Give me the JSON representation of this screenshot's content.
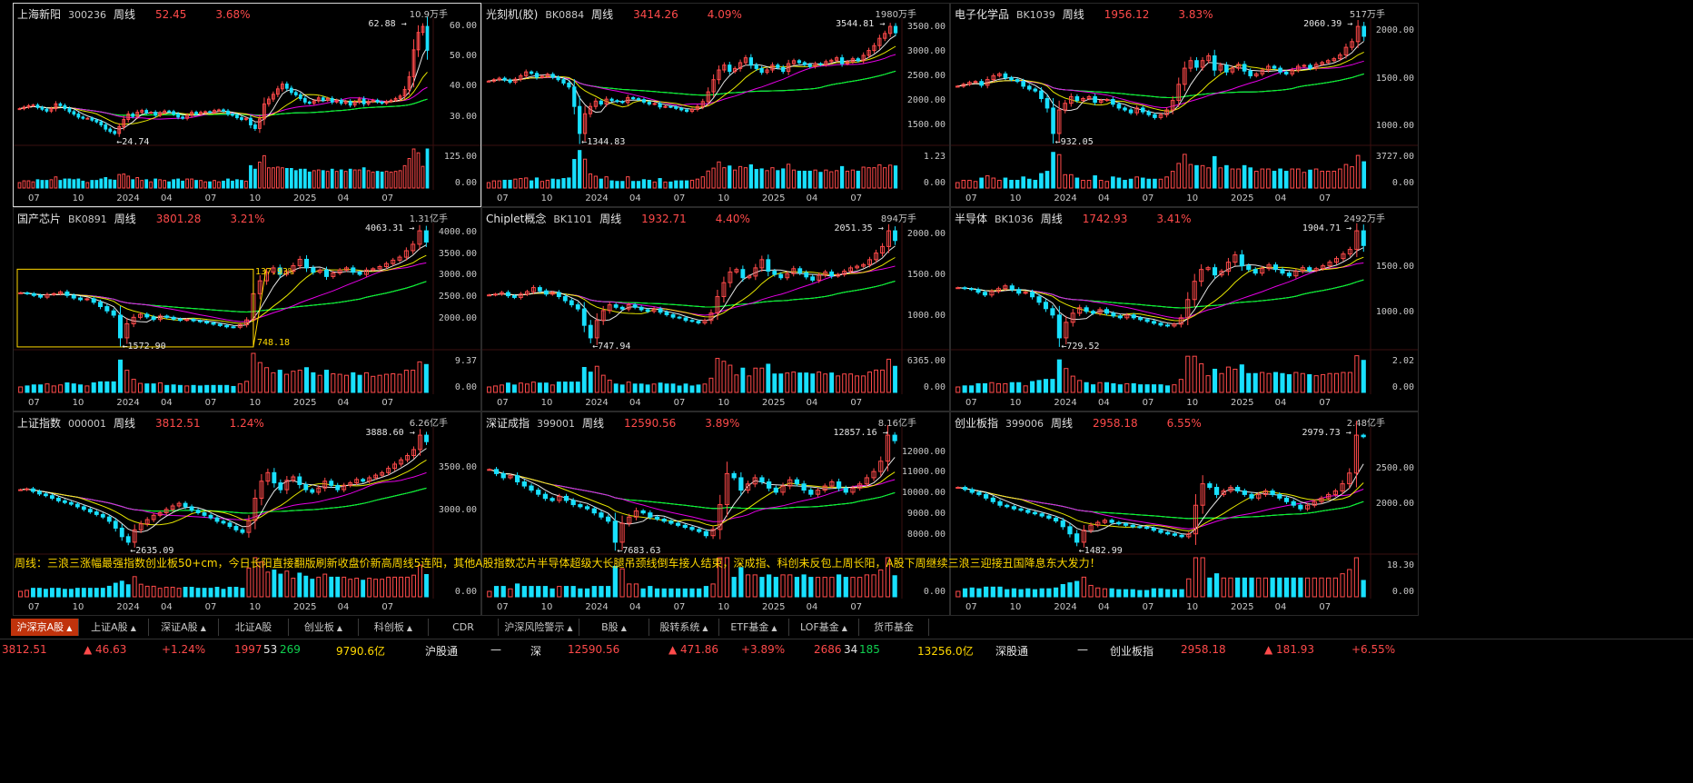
{
  "colors": {
    "up": "#ff4a4a",
    "down": "#18e0ff",
    "ma5": "#ffffff",
    "ma10": "#ffff00",
    "ma20": "#ff00ff",
    "ma60": "#00ff00",
    "ma120": "#18e0ff",
    "ma250": "#c8c8c8"
  },
  "x_ticks": [
    "07",
    "10",
    "2024",
    "04",
    "07",
    "10",
    "2025",
    "04",
    "07"
  ],
  "panels": [
    {
      "name": "上海新阳",
      "code": "300236",
      "period": "周线",
      "price": "52.45",
      "change": "3.68%",
      "vol_unit": "10.9万手",
      "y_ticks": [
        "60.00",
        "50.00",
        "40.00",
        "30.00"
      ],
      "vol_ticks": [
        "125.00",
        "0.00"
      ],
      "high": "62.88",
      "low": "24.74",
      "series": [
        33,
        33.5,
        34,
        34.2,
        33.4,
        32.8,
        32.2,
        33,
        34.6,
        34,
        33,
        32,
        31.2,
        30.2,
        29.8,
        29.8,
        29.2,
        28.6,
        27.6,
        26.2,
        25.4,
        24.74,
        27,
        29.4,
        31.2,
        30.4,
        31.8,
        32.4,
        31.6,
        31.8,
        30.8,
        31.6,
        32.2,
        32,
        31.2,
        30.2,
        29.8,
        30.8,
        31.8,
        31.2,
        31.8,
        32,
        31.8,
        32.4,
        32.6,
        32.2,
        31.2,
        30.8,
        30,
        29.4,
        29.8,
        27.6,
        26.4,
        29.6,
        34.6,
        36.2,
        37.8,
        39.6,
        41.2,
        39.8,
        38.4,
        37.6,
        36.4,
        35.2,
        34.8,
        35.6,
        36.6,
        35.8,
        36.4,
        35.2,
        35.8,
        34.8,
        35.4,
        34.2,
        35.2,
        36.2,
        34.6,
        35.4,
        35.8,
        35.2,
        34.8,
        35.4,
        35.8,
        36.4,
        37.2,
        39.4,
        43.6,
        52.6,
        58.4,
        60.4,
        52.45
      ]
    },
    {
      "name": "光刻机(胶)",
      "code": "BK0884",
      "period": "周线",
      "price": "3414.26",
      "change": "4.09%",
      "vol_unit": "1980万手",
      "y_ticks": [
        "3500.00",
        "3000.00",
        "2500.00",
        "2000.00",
        "1500.00"
      ],
      "vol_ticks": [
        "1.23",
        "0.00"
      ],
      "high": "3544.81",
      "low": "1344.83",
      "series": [
        2420,
        2450,
        2480,
        2440,
        2400,
        2460,
        2530,
        2610,
        2580,
        2500,
        2520,
        2560,
        2500,
        2450,
        2380,
        2300,
        1900,
        1344.83,
        1750,
        1900,
        2010,
        1950,
        2050,
        2020,
        2000,
        1980,
        2080,
        2060,
        2040,
        1990,
        1950,
        1960,
        1890,
        1900,
        1890,
        1860,
        1830,
        1800,
        1840,
        1900,
        2000,
        2200,
        2450,
        2650,
        2750,
        2620,
        2680,
        2800,
        2900,
        2750,
        2680,
        2600,
        2650,
        2750,
        2700,
        2620,
        2780,
        2840,
        2800,
        2760,
        2720,
        2780,
        2760,
        2820,
        2850,
        2900,
        2780,
        2820,
        2880,
        2840,
        2950,
        3050,
        3150,
        3300,
        3400,
        3544.81,
        3414.26
      ]
    },
    {
      "name": "电子化学品",
      "code": "BK1039",
      "period": "周线",
      "price": "1956.12",
      "change": "3.83%",
      "vol_unit": "517万手",
      "y_ticks": [
        "2000.00",
        "1500.00",
        "1000.00"
      ],
      "vol_ticks": [
        "3727.00",
        "0.00"
      ],
      "high": "2060.39",
      "low": "932.05",
      "series": [
        1430,
        1450,
        1470,
        1480,
        1440,
        1500,
        1540,
        1560,
        1520,
        1500,
        1480,
        1430,
        1400,
        1380,
        1300,
        1200,
        932.05,
        1180,
        1250,
        1320,
        1280,
        1300,
        1320,
        1260,
        1280,
        1290,
        1240,
        1200,
        1180,
        1150,
        1200,
        1160,
        1130,
        1100,
        1130,
        1180,
        1280,
        1450,
        1620,
        1700,
        1630,
        1700,
        1750,
        1600,
        1650,
        1580,
        1620,
        1660,
        1590,
        1540,
        1560,
        1600,
        1640,
        1620,
        1580,
        1560,
        1600,
        1640,
        1650,
        1620,
        1660,
        1680,
        1700,
        1720,
        1760,
        1840,
        1900,
        2060.39,
        1956.12
      ]
    },
    {
      "name": "国产芯片",
      "code": "BK0891",
      "period": "周线",
      "price": "3801.28",
      "change": "3.21%",
      "vol_unit": "1.31亿手",
      "y_ticks": [
        "4000.00",
        "3500.00",
        "3000.00",
        "2500.00",
        "2000.00"
      ],
      "vol_ticks": [
        "9.37",
        "0.00"
      ],
      "high": "4063.31",
      "low": "1572.90",
      "pct_label": "137.93%",
      "range_label": "748.18",
      "series": [
        2620,
        2600,
        2560,
        2520,
        2580,
        2600,
        2640,
        2560,
        2500,
        2460,
        2480,
        2400,
        2300,
        2200,
        2100,
        1572.9,
        1900,
        2050,
        2120,
        2060,
        2000,
        2080,
        2050,
        2010,
        1980,
        2000,
        1970,
        1950,
        1920,
        1890,
        1860,
        1830,
        1820,
        1880,
        1990,
        2600,
        2900,
        3100,
        3200,
        3050,
        3120,
        3250,
        3400,
        3200,
        3100,
        3150,
        3000,
        3080,
        3150,
        3200,
        3100,
        3050,
        3150,
        3180,
        3230,
        3300,
        3380,
        3450,
        3600,
        3750,
        4063.31,
        3801.28
      ]
    },
    {
      "name": "Chiplet概念",
      "code": "BK1101",
      "period": "周线",
      "price": "1932.71",
      "change": "4.40%",
      "vol_unit": "894万手",
      "y_ticks": [
        "2000.00",
        "1500.00",
        "1000.00"
      ],
      "vol_ticks": [
        "6365.00",
        "0.00"
      ],
      "high": "2051.35",
      "low": "747.94",
      "series": [
        1270,
        1280,
        1300,
        1260,
        1240,
        1280,
        1310,
        1360,
        1320,
        1280,
        1300,
        1250,
        1200,
        1150,
        1100,
        900,
        747.94,
        960,
        1080,
        1150,
        1120,
        1100,
        1150,
        1120,
        1090,
        1070,
        1100,
        1060,
        1030,
        1000,
        990,
        960,
        950,
        930,
        960,
        1050,
        1250,
        1420,
        1550,
        1580,
        1480,
        1500,
        1600,
        1700,
        1560,
        1520,
        1480,
        1530,
        1590,
        1540,
        1490,
        1450,
        1510,
        1550,
        1500,
        1520,
        1560,
        1600,
        1620,
        1640,
        1700,
        1780,
        1860,
        2051.35,
        1932.71
      ]
    },
    {
      "name": "半导体",
      "code": "BK1036",
      "period": "周线",
      "price": "1742.93",
      "change": "3.41%",
      "vol_unit": "2492万手",
      "y_ticks": [
        "1500.00",
        "1000.00"
      ],
      "vol_ticks": [
        "2.02",
        "0.00"
      ],
      "high": "1904.71",
      "low": "729.52",
      "series": [
        1280,
        1270,
        1260,
        1230,
        1200,
        1240,
        1270,
        1300,
        1260,
        1220,
        1230,
        1180,
        1120,
        1050,
        980,
        729.52,
        900,
        1000,
        1060,
        1020,
        1000,
        1040,
        1000,
        970,
        950,
        980,
        950,
        930,
        910,
        890,
        870,
        860,
        880,
        950,
        1150,
        1350,
        1480,
        1500,
        1420,
        1460,
        1560,
        1640,
        1520,
        1480,
        1440,
        1490,
        1530,
        1480,
        1440,
        1410,
        1460,
        1500,
        1470,
        1490,
        1520,
        1560,
        1600,
        1650,
        1700,
        1904.71,
        1742.93
      ]
    },
    {
      "name": "上证指数",
      "code": "000001",
      "period": "周线",
      "price": "3812.51",
      "change": "1.24%",
      "vol_unit": "6.26亿手",
      "y_ticks": [
        "3500.00",
        "3000.00"
      ],
      "vol_ticks": [
        "0.00"
      ],
      "high": "3888.60",
      "low": "2635.09",
      "series": [
        3250,
        3260,
        3230,
        3200,
        3180,
        3150,
        3120,
        3100,
        3080,
        3050,
        3020,
        2990,
        2960,
        2930,
        2880,
        2800,
        2700,
        2635.09,
        2780,
        2850,
        2900,
        2950,
        2980,
        3020,
        3060,
        3090,
        3050,
        3010,
        2980,
        2950,
        2920,
        2880,
        2860,
        2820,
        2780,
        2750,
        2890,
        3150,
        3350,
        3450,
        3330,
        3250,
        3360,
        3400,
        3310,
        3250,
        3220,
        3270,
        3350,
        3300,
        3250,
        3300,
        3330,
        3370,
        3350,
        3390,
        3420,
        3450,
        3500,
        3550,
        3600,
        3650,
        3720,
        3888.6,
        3812.51
      ]
    },
    {
      "name": "深证成指",
      "code": "399001",
      "period": "周线",
      "price": "12590.56",
      "change": "3.89%",
      "vol_unit": "8.16亿手",
      "y_ticks": [
        "12000.00",
        "11000.00",
        "10000.00",
        "9000.00",
        "8000.00"
      ],
      "vol_ticks": [
        "0.00"
      ],
      "high": "12857.16",
      "low": "7683.63",
      "series": [
        11200,
        11000,
        10800,
        10900,
        10600,
        10400,
        10200,
        10000,
        9800,
        9700,
        9900,
        9700,
        9500,
        9400,
        9300,
        9100,
        8900,
        8700,
        7683.63,
        8600,
        8900,
        9200,
        9100,
        8900,
        8800,
        8700,
        8600,
        8500,
        8400,
        8300,
        8200,
        8000,
        8300,
        9500,
        11000,
        10800,
        10200,
        10500,
        10800,
        10600,
        10300,
        10100,
        10400,
        10700,
        10500,
        10200,
        10000,
        10200,
        10400,
        10600,
        10300,
        10100,
        10300,
        10500,
        10800,
        11100,
        11600,
        12857.16,
        12590.56
      ]
    },
    {
      "name": "创业板指",
      "code": "399006",
      "period": "周线",
      "price": "2958.18",
      "change": "6.55%",
      "vol_unit": "2.48亿手",
      "y_ticks": [
        "2500.00",
        "2000.00"
      ],
      "vol_ticks": [
        "18.30",
        "0.00"
      ],
      "high": "2979.73",
      "low": "1482.99",
      "series": [
        2250,
        2220,
        2180,
        2150,
        2100,
        2050,
        2000,
        1980,
        1950,
        1930,
        1900,
        1880,
        1850,
        1820,
        1780,
        1700,
        1600,
        1482.99,
        1650,
        1720,
        1760,
        1790,
        1760,
        1740,
        1720,
        1700,
        1690,
        1680,
        1650,
        1620,
        1600,
        1580,
        1560,
        1600,
        2000,
        2300,
        2250,
        2150,
        2200,
        2250,
        2200,
        2150,
        2100,
        2150,
        2200,
        2150,
        2100,
        2050,
        2000,
        1950,
        2000,
        2050,
        2100,
        2150,
        2200,
        2300,
        2450,
        2979.73,
        2958.18
      ]
    }
  ],
  "note": "周线：三浪三涨幅最强指数创业板50+cm，今日长阳直接翻版刷新收盘价新高周线5连阳，其他A股指数芯片半导体超级大长腿吊颈线倒车接人结束，深成指、科创未反包上周长阳，A股下周继续三浪三迎接丑国降息东大发力！",
  "tabs": [
    {
      "label": "沪深京A股",
      "arrow": "▲",
      "active": true,
      "w": 74
    },
    {
      "label": "上证A股",
      "arrow": "▲",
      "active": false,
      "w": 76
    },
    {
      "label": "深证A股",
      "arrow": "▲",
      "active": false,
      "w": 76
    },
    {
      "label": "北证A股",
      "arrow": "",
      "active": false,
      "w": 76
    },
    {
      "label": "创业板",
      "arrow": "▲",
      "active": false,
      "w": 76
    },
    {
      "label": "科创板",
      "arrow": "▲",
      "active": false,
      "w": 76
    },
    {
      "label": "CDR",
      "arrow": "",
      "active": false,
      "w": 76
    },
    {
      "label": "沪深风险警示",
      "arrow": "▲",
      "active": false,
      "w": 88
    },
    {
      "label": "B股",
      "arrow": "▲",
      "active": false,
      "w": 76
    },
    {
      "label": "股转系统",
      "arrow": "▲",
      "active": false,
      "w": 76
    },
    {
      "label": "ETF基金",
      "arrow": "▲",
      "active": false,
      "w": 76
    },
    {
      "label": "LOF基金",
      "arrow": "▲",
      "active": false,
      "w": 76
    },
    {
      "label": "货币基金",
      "arrow": "",
      "active": false,
      "w": 76
    }
  ],
  "status": {
    "sh_price": "3812.51",
    "sh_delta": "▲ 46.63",
    "sh_pct": "+1.24%",
    "sh_up": "1997",
    "sh_flat": "53",
    "sh_down": "269",
    "sh_amount": "9790.6亿",
    "sh_connect": "沪股通",
    "sh_connect_val": "—",
    "sz_label": "深",
    "sz_price": "12590.56",
    "sz_delta": "▲ 471.86",
    "sz_pct": "+3.89%",
    "sz_up": "2686",
    "sz_flat": "34",
    "sz_down": "185",
    "sz_amount": "13256.0亿",
    "sz_connect": "深股通",
    "sz_connect_val": "—",
    "cy_label": "创业板指",
    "cy_price": "2958.18",
    "cy_delta": "▲ 181.93",
    "cy_pct": "+6.55%"
  }
}
